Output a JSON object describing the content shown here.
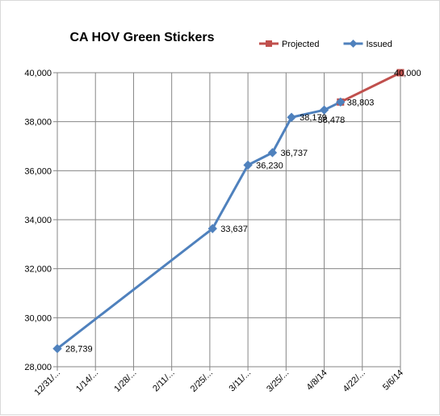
{
  "chart_data": {
    "type": "line",
    "title": "CA HOV Green Stickers",
    "ylim": [
      28000,
      40000
    ],
    "y_ticks": [
      28000,
      30000,
      32000,
      34000,
      36000,
      38000,
      40000
    ],
    "y_tick_labels": [
      "28,000",
      "30,000",
      "32,000",
      "34,000",
      "36,000",
      "38,000",
      "40,000"
    ],
    "x_range": [
      "2013-12-31",
      "2014-05-06"
    ],
    "x_ticks": [
      "2013-12-31",
      "2014-01-14",
      "2014-01-28",
      "2014-02-11",
      "2014-02-25",
      "2014-03-11",
      "2014-03-25",
      "2014-04-08",
      "2014-04-22",
      "2014-05-06"
    ],
    "x_tick_labels": [
      "12/31/...",
      "1/14/...",
      "1/28/...",
      "2/11/...",
      "2/25/...",
      "3/11/...",
      "3/25/...",
      "4/8/14",
      "4/22/...",
      "5/6/14"
    ],
    "grid": true,
    "legend_position": "top-right",
    "series": [
      {
        "name": "Projected",
        "color": "#c0504d",
        "marker": "square",
        "x": [
          "2014-04-14",
          "2014-05-06"
        ],
        "values": [
          38803,
          40000
        ],
        "labels": [
          "38,803",
          "40,000"
        ]
      },
      {
        "name": "Issued",
        "color": "#4f81bd",
        "marker": "diamond",
        "x": [
          "2013-12-31",
          "2014-02-26",
          "2014-03-11",
          "2014-03-20",
          "2014-03-27",
          "2014-04-08",
          "2014-04-14"
        ],
        "values": [
          28739,
          33637,
          36230,
          36737,
          38179,
          38478,
          38803
        ],
        "labels": [
          "28,739",
          "33,637",
          "36,230",
          "36,737",
          "38,179",
          "38,478",
          ""
        ]
      }
    ]
  }
}
